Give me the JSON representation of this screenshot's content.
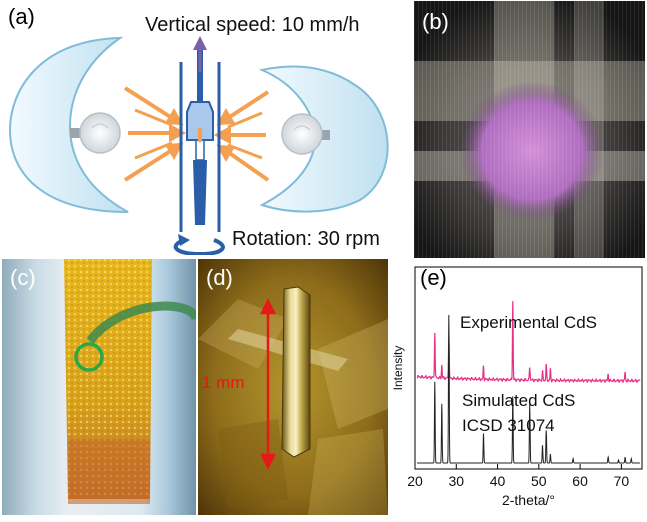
{
  "panel_a": {
    "label": "(a)",
    "speed_text": "Vertical speed: 10 mm/h",
    "rotation_text": "Rotation: 30 rpm"
  },
  "panel_b": {
    "label": "(b)"
  },
  "panel_c": {
    "label": "(c)"
  },
  "panel_d": {
    "label": "(d)",
    "scale_text": "1 mm"
  },
  "panel_e": {
    "label": "(e)"
  },
  "colors": {
    "reflector": "#d8eef8",
    "reflector_edge": "#8cc6e0",
    "arrow": "#f4a050",
    "tube": "#2a5ea8",
    "experimental": "#e8308a",
    "simulated": "#222222"
  },
  "chart_data": {
    "type": "line",
    "xlabel": "2-theta/°",
    "ylabel": "Intensity",
    "xlim": [
      20,
      75
    ],
    "xticks": [
      20,
      30,
      40,
      50,
      60,
      70
    ],
    "grid": false,
    "annotations": [
      "Experimental CdS",
      "Simulated CdS",
      "ICSD 31074"
    ],
    "series": [
      {
        "name": "Experimental CdS",
        "color": "#e8308a",
        "peaks": [
          [
            24.8,
            0.42
          ],
          [
            26.5,
            0.12
          ],
          [
            28.2,
            0.36
          ],
          [
            36.6,
            0.12
          ],
          [
            43.7,
            0.72
          ],
          [
            47.8,
            0.12
          ],
          [
            50.9,
            0.08
          ],
          [
            51.8,
            0.14
          ],
          [
            52.8,
            0.1
          ],
          [
            66.8,
            0.06
          ],
          [
            70.9,
            0.08
          ]
        ]
      },
      {
        "name": "Simulated CdS",
        "color": "#222222",
        "peaks": [
          [
            24.8,
            0.55
          ],
          [
            26.5,
            0.4
          ],
          [
            28.2,
            1.0
          ],
          [
            36.6,
            0.2
          ],
          [
            43.7,
            0.45
          ],
          [
            47.8,
            0.4
          ],
          [
            50.9,
            0.12
          ],
          [
            51.8,
            0.22
          ],
          [
            52.8,
            0.06
          ],
          [
            58.3,
            0.03
          ],
          [
            66.8,
            0.04
          ],
          [
            69.3,
            0.02
          ],
          [
            70.9,
            0.04
          ],
          [
            72.4,
            0.03
          ]
        ]
      }
    ]
  }
}
